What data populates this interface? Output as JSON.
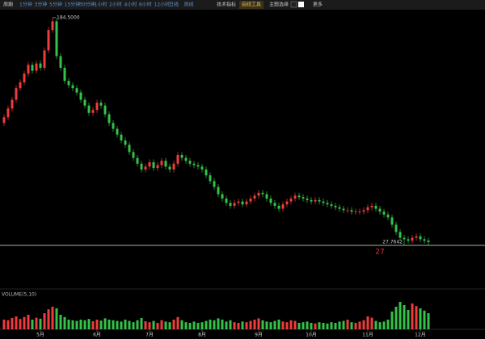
{
  "toolbar": {
    "period": "周期",
    "intervals": [
      "1分钟",
      "3分钟",
      "5分钟",
      "15分钟",
      "30分钟",
      "1小时",
      "2小时",
      "4小时",
      "6小时",
      "12小时",
      "日线",
      "周线"
    ],
    "indicators": "技术指标",
    "drawing": "画线工具",
    "theme": "主题选择",
    "more": "更多"
  },
  "chart_data": {
    "type": "candlestick",
    "open": [
      112,
      116,
      122,
      128,
      136,
      140,
      146,
      152,
      148,
      153,
      150,
      162,
      176,
      182,
      158,
      150,
      141,
      138,
      136,
      133,
      128,
      124,
      119,
      121,
      126,
      124,
      118,
      112,
      108,
      104,
      100,
      97,
      92,
      88,
      84,
      80,
      82,
      85,
      81,
      83,
      86,
      82,
      80,
      84,
      90,
      88,
      86,
      84,
      83,
      82,
      80,
      76,
      72,
      68,
      63,
      60,
      57,
      55,
      57,
      58,
      56,
      58,
      60,
      62,
      64,
      63,
      60,
      57,
      55,
      53,
      56,
      58,
      60,
      62,
      61,
      60,
      59,
      58,
      59,
      58,
      57,
      56,
      55,
      54,
      53,
      52,
      52,
      51,
      51,
      51,
      52,
      54,
      55,
      53,
      51,
      49,
      47,
      42,
      37,
      33,
      32,
      31,
      33,
      34,
      32,
      31
    ],
    "high": [
      118,
      124,
      130,
      138,
      142,
      148,
      154,
      154,
      155,
      155,
      164,
      178,
      184.5,
      184,
      160,
      152,
      143,
      140,
      138,
      135,
      130,
      126,
      123,
      128,
      128,
      126,
      120,
      114,
      110,
      106,
      102,
      99,
      94,
      90,
      86,
      84,
      87,
      87,
      85,
      88,
      88,
      84,
      86,
      92,
      92,
      90,
      88,
      86,
      85,
      84,
      82,
      78,
      74,
      70,
      65,
      62,
      59,
      59,
      60,
      60,
      60,
      62,
      64,
      66,
      66,
      65,
      62,
      59,
      57,
      58,
      60,
      62,
      64,
      64,
      63,
      62,
      61,
      61,
      61,
      60,
      59,
      58,
      57,
      56,
      55,
      54,
      54,
      53,
      53,
      54,
      56,
      57,
      57,
      55,
      53,
      51,
      49,
      44,
      39,
      35,
      34,
      35,
      36,
      36,
      34,
      33
    ],
    "low": [
      110,
      114,
      120,
      126,
      134,
      138,
      144,
      146,
      146,
      148,
      148,
      160,
      174,
      156,
      148,
      139,
      136,
      134,
      131,
      126,
      122,
      117,
      117,
      119,
      122,
      116,
      110,
      106,
      102,
      98,
      95,
      90,
      86,
      82,
      78,
      78,
      80,
      79,
      79,
      81,
      80,
      78,
      78,
      82,
      86,
      84,
      82,
      81,
      80,
      78,
      74,
      70,
      66,
      61,
      58,
      55,
      53,
      53,
      55,
      54,
      54,
      56,
      58,
      60,
      61,
      58,
      55,
      53,
      51,
      51,
      54,
      56,
      58,
      59,
      58,
      57,
      56,
      56,
      56,
      55,
      54,
      53,
      52,
      51,
      50,
      50,
      49,
      49,
      49,
      49,
      50,
      52,
      51,
      49,
      47,
      45,
      40,
      35,
      31,
      27.7642,
      29,
      29,
      31,
      30,
      29,
      28
    ],
    "close": [
      116,
      122,
      128,
      136,
      140,
      146,
      152,
      148,
      153,
      150,
      162,
      176,
      182,
      158,
      150,
      141,
      138,
      136,
      133,
      128,
      124,
      119,
      121,
      126,
      124,
      118,
      112,
      108,
      104,
      100,
      97,
      92,
      88,
      84,
      80,
      82,
      85,
      81,
      83,
      86,
      82,
      80,
      84,
      90,
      88,
      86,
      84,
      83,
      82,
      80,
      76,
      72,
      68,
      63,
      60,
      57,
      55,
      57,
      58,
      56,
      58,
      60,
      62,
      64,
      63,
      60,
      57,
      55,
      53,
      56,
      58,
      60,
      62,
      61,
      60,
      59,
      58,
      59,
      58,
      57,
      56,
      55,
      54,
      53,
      52,
      52,
      51,
      51,
      51,
      52,
      54,
      55,
      53,
      51,
      49,
      47,
      42,
      37,
      33,
      32,
      31,
      33,
      34,
      32,
      31,
      30
    ],
    "volume": [
      30,
      28,
      35,
      40,
      32,
      38,
      45,
      30,
      36,
      33,
      50,
      62,
      70,
      65,
      45,
      38,
      30,
      28,
      26,
      30,
      28,
      32,
      25,
      30,
      27,
      34,
      30,
      28,
      26,
      24,
      30,
      26,
      22,
      28,
      35,
      25,
      22,
      26,
      20,
      28,
      24,
      22,
      30,
      38,
      28,
      22,
      20,
      24,
      20,
      22,
      26,
      30,
      28,
      34,
      30,
      24,
      28,
      22,
      20,
      24,
      22,
      26,
      30,
      34,
      28,
      24,
      22,
      26,
      30,
      24,
      22,
      28,
      26,
      20,
      22,
      24,
      20,
      18,
      22,
      20,
      18,
      22,
      20,
      24,
      26,
      30,
      22,
      20,
      24,
      28,
      40,
      36,
      26,
      22,
      24,
      30,
      55,
      70,
      85,
      75,
      60,
      80,
      72,
      65,
      58,
      50
    ],
    "ylim": [
      20,
      190
    ],
    "vlim": [
      0,
      100
    ],
    "xticks": [
      {
        "value": 9,
        "label": "5月"
      },
      {
        "value": 23,
        "label": "6月"
      },
      {
        "value": 36,
        "label": "7月"
      },
      {
        "value": 49,
        "label": "8月"
      },
      {
        "value": 63,
        "label": "9月"
      },
      {
        "value": 76,
        "label": "10月"
      },
      {
        "value": 90,
        "label": "11月"
      },
      {
        "value": 103,
        "label": "12月"
      }
    ],
    "high_label": "184.5000",
    "low_label": "27.7642",
    "marker_label": "27",
    "volume_label": "VOLUME(5,10)",
    "up_color": "#f03c3c",
    "down_color": "#35c24a"
  }
}
